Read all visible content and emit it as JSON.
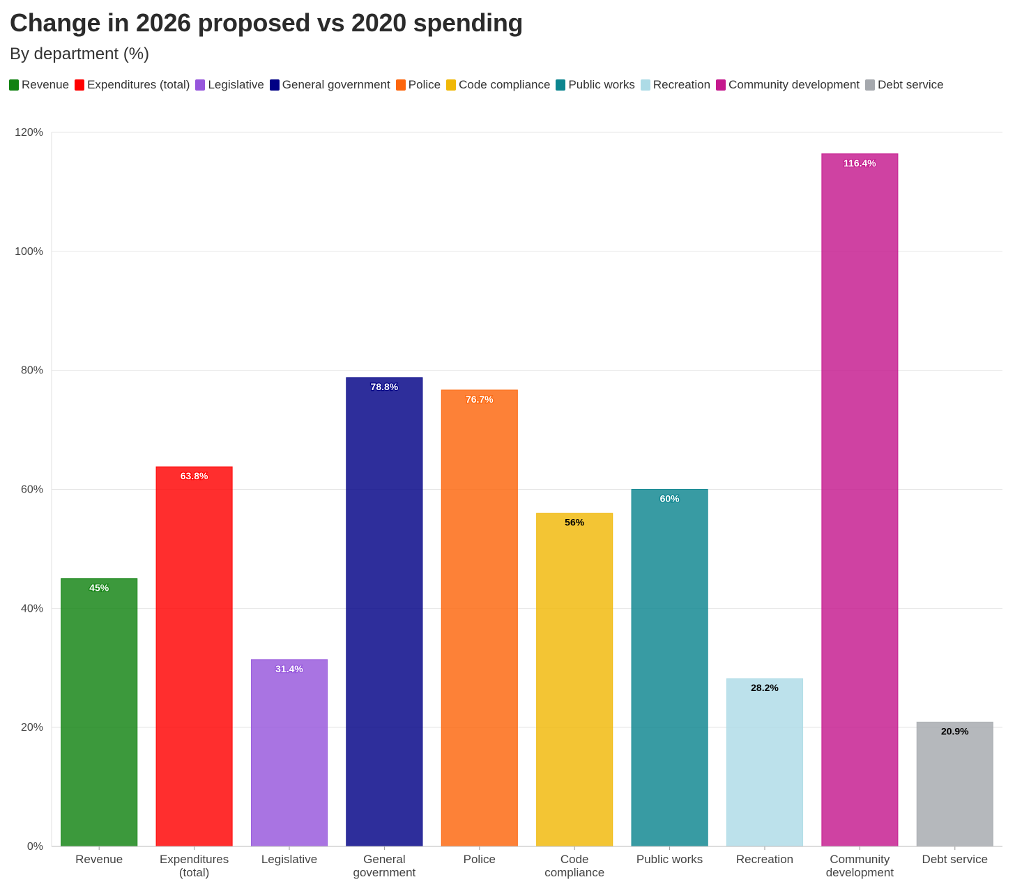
{
  "title": "Change in 2026 proposed vs 2020 spending",
  "subtitle": "By department (%)",
  "chart_data": {
    "type": "bar",
    "title": "Change in 2026 proposed vs 2020 spending",
    "subtitle": "By department (%)",
    "xlabel": "",
    "ylabel": "",
    "ylim": [
      0,
      120
    ],
    "yticks": [
      0,
      20,
      40,
      60,
      80,
      100,
      120
    ],
    "ytick_labels": [
      "0%",
      "20%",
      "40%",
      "60%",
      "80%",
      "100%",
      "120%"
    ],
    "grid": true,
    "legend_position": "top-left",
    "categories": [
      "Revenue",
      "Expenditures (total)",
      "Legislative",
      "General government",
      "Police",
      "Code compliance",
      "Public works",
      "Recreation",
      "Community development",
      "Debt service"
    ],
    "category_label_lines": [
      [
        "Revenue"
      ],
      [
        "Expenditures",
        "(total)"
      ],
      [
        "Legislative"
      ],
      [
        "General",
        "government"
      ],
      [
        "Police"
      ],
      [
        "Code",
        "compliance"
      ],
      [
        "Public works"
      ],
      [
        "Recreation"
      ],
      [
        "Community",
        "development"
      ],
      [
        "Debt service"
      ]
    ],
    "values": [
      45,
      63.8,
      31.4,
      78.8,
      76.7,
      56,
      60,
      28.2,
      116.4,
      20.9
    ],
    "data_labels": [
      "45%",
      "63.8%",
      "31.4%",
      "78.8%",
      "76.7%",
      "56%",
      "60%",
      "28.2%",
      "116.4%",
      "20.9%"
    ],
    "colors": [
      "#118211",
      "#ff0000",
      "#9656dc",
      "#000085",
      "#fd650b",
      "#f0b807",
      "#0c858f",
      "#addbe6",
      "#c5198d",
      "#a5a8ad"
    ],
    "label_colors": [
      "#ffffff",
      "#ffffff",
      "#ffffff",
      "#ffffff",
      "#ffffff",
      "#000000",
      "#ffffff",
      "#000000",
      "#ffffff",
      "#000000"
    ],
    "legend": [
      "Revenue",
      "Expenditures (total)",
      "Legislative",
      "General government",
      "Police",
      "Code compliance",
      "Public works",
      "Recreation",
      "Community development",
      "Debt service"
    ]
  }
}
